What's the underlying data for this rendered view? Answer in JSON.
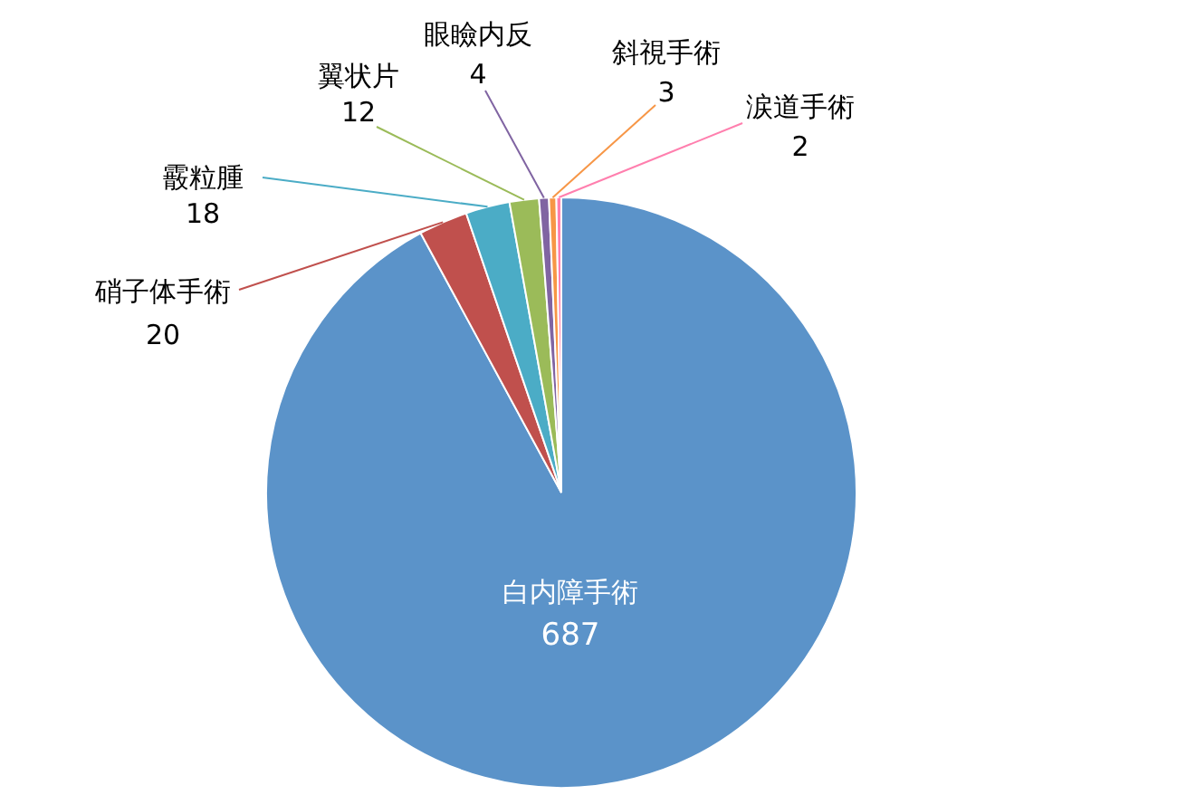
{
  "chart_data": {
    "type": "pie",
    "categories": [
      "白内障手術",
      "硝子体手術",
      "霰粒腫",
      "翼状片",
      "眼瞼内反",
      "斜視手術",
      "涙道手術"
    ],
    "values": [
      687,
      20,
      18,
      12,
      4,
      3,
      2
    ],
    "colors": [
      "#5b93c9",
      "#c0504d",
      "#4bacc6",
      "#9bbb59",
      "#8064a2",
      "#f79646",
      "#ff7fae"
    ],
    "data_labels": true
  }
}
